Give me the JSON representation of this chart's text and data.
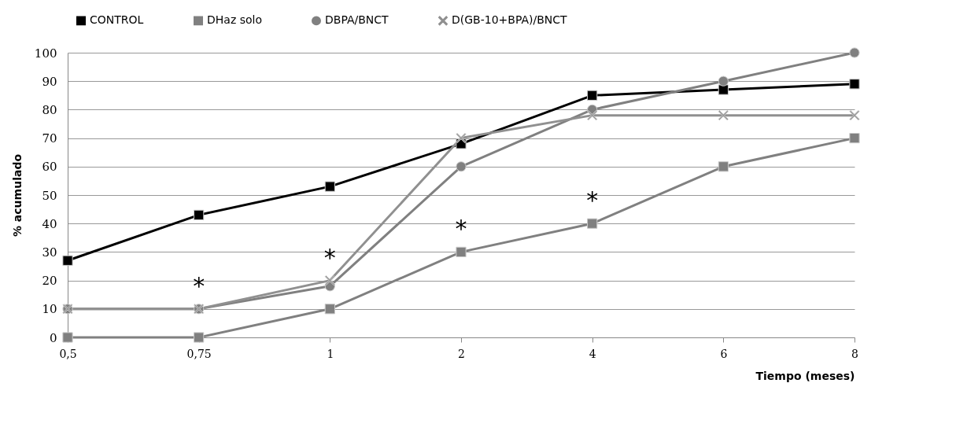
{
  "chart_data": {
    "type": "line",
    "xlabel": "Tiempo (meses)",
    "ylabel": "% acumulado",
    "categories": [
      "0,5",
      "0,75",
      "1",
      "2",
      "4",
      "6",
      "8"
    ],
    "series": [
      {
        "name": "CONTROL",
        "color": "#000000",
        "marker": "square",
        "values": [
          27,
          43,
          53,
          68,
          85,
          87,
          89
        ]
      },
      {
        "name": "DHaz solo",
        "color": "#808080",
        "marker": "square",
        "values": [
          0,
          0,
          10,
          30,
          40,
          60,
          70
        ]
      },
      {
        "name": "DBPA/BNCT",
        "color": "#808080",
        "marker": "circle",
        "values": [
          10,
          10,
          18,
          60,
          80,
          90,
          100
        ]
      },
      {
        "name": "D(GB-10+BPA)/BNCT",
        "color": "#909090",
        "marker": "cross",
        "values": [
          10,
          10,
          20,
          70,
          78,
          78,
          78
        ]
      }
    ],
    "ylim": [
      0,
      100
    ],
    "yticks": [
      0,
      10,
      20,
      30,
      40,
      50,
      60,
      70,
      80,
      90,
      100
    ],
    "grid": "y",
    "legend": "top",
    "line_style": "solid",
    "annotations": [
      {
        "text": "*",
        "x": "0,75",
        "y": 10
      },
      {
        "text": "*",
        "x": "1",
        "y": 20
      },
      {
        "text": "*",
        "x": "2",
        "y": 30
      },
      {
        "text": "*",
        "x": "4",
        "y": 40
      }
    ]
  }
}
